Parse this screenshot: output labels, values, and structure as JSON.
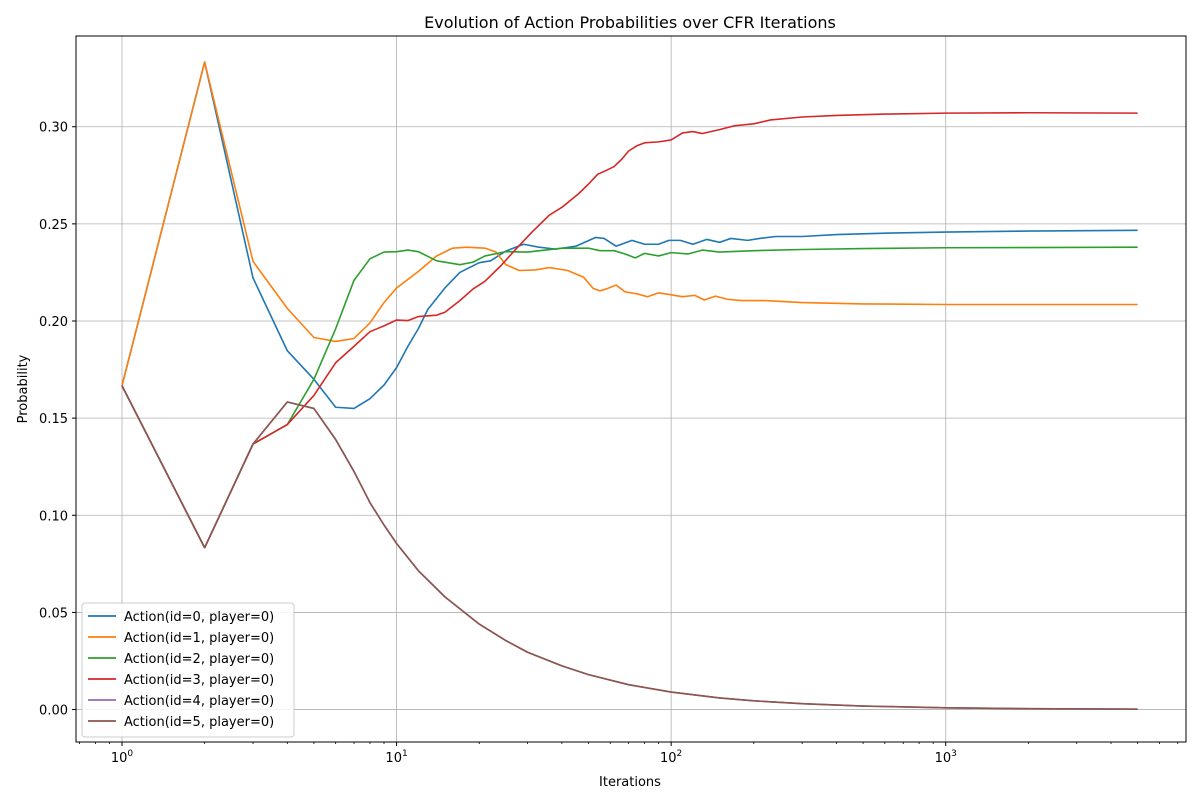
{
  "chart_data": {
    "type": "line",
    "title": "Evolution of Action Probabilities over CFR Iterations",
    "xlabel": "Iterations",
    "ylabel": "Probability",
    "xscale": "log",
    "xlim": [
      0.68,
      7500
    ],
    "ylim": [
      -0.0167,
      0.3467
    ],
    "x_ticks": [
      {
        "value": 1,
        "base": "10",
        "exp": "0"
      },
      {
        "value": 10,
        "base": "10",
        "exp": "1"
      },
      {
        "value": 100,
        "base": "10",
        "exp": "2"
      },
      {
        "value": 1000,
        "base": "10",
        "exp": "3"
      }
    ],
    "y_ticks": [
      {
        "value": 0.0,
        "label": "0.00"
      },
      {
        "value": 0.05,
        "label": "0.05"
      },
      {
        "value": 0.1,
        "label": "0.10"
      },
      {
        "value": 0.15,
        "label": "0.15"
      },
      {
        "value": 0.2,
        "label": "0.20"
      },
      {
        "value": 0.25,
        "label": "0.25"
      },
      {
        "value": 0.3,
        "label": "0.30"
      }
    ],
    "grid": true,
    "legend_position": "bottom-left",
    "series": [
      {
        "name": "Action(id=0, player=0)",
        "color": "#1f77b4",
        "points": [
          [
            1,
            0.1667
          ],
          [
            2,
            0.3333
          ],
          [
            3,
            0.2222
          ],
          [
            4,
            0.1847
          ],
          [
            5,
            0.17
          ],
          [
            6,
            0.1556
          ],
          [
            7,
            0.155
          ],
          [
            8,
            0.16
          ],
          [
            9,
            0.167
          ],
          [
            10,
            0.176
          ],
          [
            11,
            0.187
          ],
          [
            12,
            0.196
          ],
          [
            13,
            0.206
          ],
          [
            15,
            0.217
          ],
          [
            17,
            0.225
          ],
          [
            20,
            0.23
          ],
          [
            22,
            0.231
          ],
          [
            25,
            0.236
          ],
          [
            29,
            0.2395
          ],
          [
            33,
            0.238
          ],
          [
            38,
            0.237
          ],
          [
            45,
            0.2385
          ],
          [
            53,
            0.243
          ],
          [
            57,
            0.2425
          ],
          [
            63,
            0.2385
          ],
          [
            72,
            0.2415
          ],
          [
            80,
            0.2395
          ],
          [
            90,
            0.2395
          ],
          [
            98,
            0.2415
          ],
          [
            108,
            0.2415
          ],
          [
            120,
            0.2395
          ],
          [
            135,
            0.242
          ],
          [
            150,
            0.2405
          ],
          [
            165,
            0.2425
          ],
          [
            190,
            0.2415
          ],
          [
            210,
            0.2425
          ],
          [
            240,
            0.2435
          ],
          [
            300,
            0.2435
          ],
          [
            400,
            0.2445
          ],
          [
            600,
            0.2452
          ],
          [
            1000,
            0.2458
          ],
          [
            2000,
            0.2463
          ],
          [
            5000,
            0.2467
          ]
        ]
      },
      {
        "name": "Action(id=1, player=0)",
        "color": "#ff7f0e",
        "points": [
          [
            1,
            0.1667
          ],
          [
            2,
            0.3333
          ],
          [
            3,
            0.2307
          ],
          [
            4,
            0.2065
          ],
          [
            5,
            0.1915
          ],
          [
            6,
            0.1895
          ],
          [
            7,
            0.191
          ],
          [
            8,
            0.199
          ],
          [
            9,
            0.2095
          ],
          [
            10,
            0.217
          ],
          [
            12,
            0.2255
          ],
          [
            14,
            0.2335
          ],
          [
            16,
            0.2375
          ],
          [
            18,
            0.238
          ],
          [
            21,
            0.2375
          ],
          [
            23,
            0.2355
          ],
          [
            25,
            0.229
          ],
          [
            28,
            0.226
          ],
          [
            32,
            0.2263
          ],
          [
            36,
            0.2275
          ],
          [
            42,
            0.226
          ],
          [
            48,
            0.2225
          ],
          [
            52,
            0.2168
          ],
          [
            55,
            0.2155
          ],
          [
            58,
            0.2165
          ],
          [
            63,
            0.2185
          ],
          [
            68,
            0.215
          ],
          [
            75,
            0.214
          ],
          [
            82,
            0.2125
          ],
          [
            90,
            0.2145
          ],
          [
            100,
            0.2135
          ],
          [
            110,
            0.2125
          ],
          [
            122,
            0.2132
          ],
          [
            132,
            0.2108
          ],
          [
            145,
            0.2128
          ],
          [
            160,
            0.2112
          ],
          [
            180,
            0.2105
          ],
          [
            220,
            0.2105
          ],
          [
            300,
            0.2095
          ],
          [
            500,
            0.2088
          ],
          [
            1000,
            0.2085
          ],
          [
            2000,
            0.2085
          ],
          [
            5000,
            0.2085
          ]
        ]
      },
      {
        "name": "Action(id=2, player=0)",
        "color": "#2ca02c",
        "points": [
          [
            1,
            0.1667
          ],
          [
            2,
            0.0833
          ],
          [
            3,
            0.1367
          ],
          [
            4,
            0.1467
          ],
          [
            5,
            0.17
          ],
          [
            6,
            0.196
          ],
          [
            7,
            0.221
          ],
          [
            8,
            0.232
          ],
          [
            9,
            0.2355
          ],
          [
            10,
            0.2357
          ],
          [
            11,
            0.2365
          ],
          [
            12,
            0.2357
          ],
          [
            14,
            0.231
          ],
          [
            17,
            0.229
          ],
          [
            19,
            0.2303
          ],
          [
            21,
            0.2335
          ],
          [
            25,
            0.2357
          ],
          [
            30,
            0.2355
          ],
          [
            40,
            0.2375
          ],
          [
            50,
            0.2375
          ],
          [
            55,
            0.2362
          ],
          [
            62,
            0.2362
          ],
          [
            68,
            0.2345
          ],
          [
            74,
            0.2325
          ],
          [
            80,
            0.2348
          ],
          [
            90,
            0.2335
          ],
          [
            100,
            0.2352
          ],
          [
            115,
            0.2345
          ],
          [
            130,
            0.2365
          ],
          [
            150,
            0.2355
          ],
          [
            200,
            0.2362
          ],
          [
            300,
            0.2368
          ],
          [
            500,
            0.2373
          ],
          [
            1000,
            0.2377
          ],
          [
            2000,
            0.2378
          ],
          [
            5000,
            0.238
          ]
        ]
      },
      {
        "name": "Action(id=3, player=0)",
        "color": "#d62728",
        "points": [
          [
            1,
            0.1667
          ],
          [
            2,
            0.0833
          ],
          [
            3,
            0.1367
          ],
          [
            4,
            0.1467
          ],
          [
            5,
            0.1617
          ],
          [
            6,
            0.1785
          ],
          [
            7,
            0.187
          ],
          [
            8,
            0.1945
          ],
          [
            9,
            0.1975
          ],
          [
            10,
            0.2005
          ],
          [
            11,
            0.2002
          ],
          [
            12,
            0.2023
          ],
          [
            14,
            0.203
          ],
          [
            15,
            0.2045
          ],
          [
            17,
            0.2105
          ],
          [
            19,
            0.2165
          ],
          [
            21,
            0.2205
          ],
          [
            24,
            0.2285
          ],
          [
            27,
            0.2365
          ],
          [
            31,
            0.2455
          ],
          [
            36,
            0.2545
          ],
          [
            40,
            0.2585
          ],
          [
            46,
            0.2655
          ],
          [
            50,
            0.2705
          ],
          [
            54,
            0.2755
          ],
          [
            58,
            0.2775
          ],
          [
            62,
            0.2795
          ],
          [
            66,
            0.2832
          ],
          [
            70,
            0.2875
          ],
          [
            75,
            0.2902
          ],
          [
            80,
            0.2917
          ],
          [
            90,
            0.2922
          ],
          [
            100,
            0.2932
          ],
          [
            110,
            0.2968
          ],
          [
            120,
            0.2975
          ],
          [
            130,
            0.2965
          ],
          [
            150,
            0.2985
          ],
          [
            170,
            0.3005
          ],
          [
            200,
            0.3015
          ],
          [
            230,
            0.3035
          ],
          [
            300,
            0.305
          ],
          [
            400,
            0.3058
          ],
          [
            600,
            0.3065
          ],
          [
            1000,
            0.307
          ],
          [
            2000,
            0.3072
          ],
          [
            5000,
            0.307
          ]
        ]
      },
      {
        "name": "Action(id=4, player=0)",
        "color": "#9467bd",
        "points": [
          [
            1,
            0.1667
          ],
          [
            2,
            0.0833
          ],
          [
            3,
            0.1367
          ],
          [
            4,
            0.1583
          ],
          [
            5,
            0.155
          ],
          [
            6,
            0.139
          ],
          [
            7,
            0.1225
          ],
          [
            8,
            0.1065
          ],
          [
            9,
            0.095
          ],
          [
            10,
            0.0855
          ],
          [
            12,
            0.0715
          ],
          [
            15,
            0.058
          ],
          [
            20,
            0.044
          ],
          [
            25,
            0.0355
          ],
          [
            30,
            0.0295
          ],
          [
            40,
            0.0225
          ],
          [
            50,
            0.018
          ],
          [
            70,
            0.0128
          ],
          [
            100,
            0.009
          ],
          [
            150,
            0.006
          ],
          [
            200,
            0.0045
          ],
          [
            300,
            0.003
          ],
          [
            500,
            0.0018
          ],
          [
            1000,
            0.0009
          ],
          [
            2000,
            0.00045
          ],
          [
            5000,
            0.0002
          ]
        ]
      },
      {
        "name": "Action(id=5, player=0)",
        "color": "#8c564b",
        "points": [
          [
            1,
            0.1667
          ],
          [
            2,
            0.0833
          ],
          [
            3,
            0.1367
          ],
          [
            4,
            0.1583
          ],
          [
            5,
            0.155
          ],
          [
            6,
            0.139
          ],
          [
            7,
            0.1225
          ],
          [
            8,
            0.1065
          ],
          [
            9,
            0.095
          ],
          [
            10,
            0.0855
          ],
          [
            12,
            0.0715
          ],
          [
            15,
            0.058
          ],
          [
            20,
            0.044
          ],
          [
            25,
            0.0355
          ],
          [
            30,
            0.0295
          ],
          [
            40,
            0.0225
          ],
          [
            50,
            0.018
          ],
          [
            70,
            0.0128
          ],
          [
            100,
            0.009
          ],
          [
            150,
            0.006
          ],
          [
            200,
            0.0045
          ],
          [
            300,
            0.003
          ],
          [
            500,
            0.0018
          ],
          [
            1000,
            0.0009
          ],
          [
            2000,
            0.00045
          ],
          [
            5000,
            0.0002
          ]
        ]
      }
    ]
  }
}
